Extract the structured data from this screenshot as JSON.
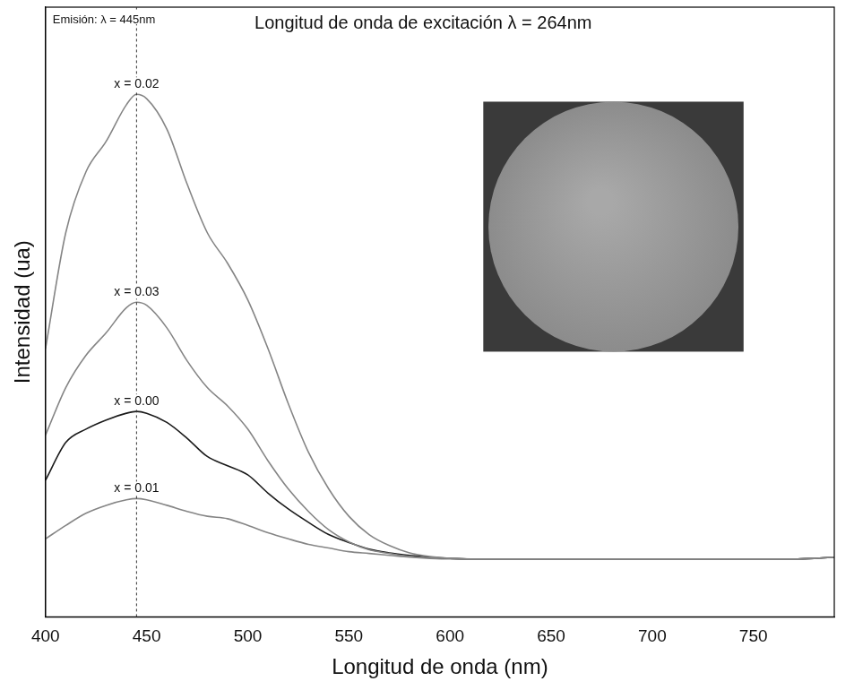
{
  "chart_data": {
    "type": "line",
    "title": "Longitud de onda de excitación λ = 264nm",
    "x_label": "Longitud de onda (nm)",
    "y_label": "Intensidad (ua)",
    "x": [
      400,
      410,
      420,
      430,
      440,
      445,
      450,
      460,
      470,
      480,
      490,
      500,
      510,
      520,
      530,
      540,
      550,
      560,
      570,
      580,
      590,
      600,
      610,
      620,
      630,
      640,
      650,
      660,
      670,
      680,
      690,
      700,
      710,
      720,
      730,
      740,
      750,
      760,
      770,
      780,
      790
    ],
    "series": [
      {
        "name": "x = 0.02",
        "color": "#858585",
        "values": [
          44,
          63,
          73,
          78,
          84,
          85.7,
          85,
          80,
          71,
          63,
          58,
          52,
          44,
          35,
          27,
          21,
          16.5,
          13.5,
          11.7,
          10.5,
          9.9,
          9.6,
          9.5,
          9.5,
          9.5,
          9.5,
          9.5,
          9.5,
          9.5,
          9.5,
          9.5,
          9.5,
          9.5,
          9.5,
          9.5,
          9.5,
          9.5,
          9.5,
          9.5,
          9.6,
          9.8
        ]
      },
      {
        "name": "x = 0.03",
        "color": "#858585",
        "values": [
          29.8,
          37.6,
          42.9,
          46.6,
          50.7,
          51.6,
          51.1,
          47.4,
          42,
          37.6,
          34.6,
          30.8,
          25.6,
          21,
          17.3,
          14.3,
          12.3,
          11,
          10.4,
          9.9,
          9.7,
          9.6,
          9.5,
          9.5,
          9.5,
          9.5,
          9.5,
          9.5,
          9.5,
          9.5,
          9.5,
          9.5,
          9.5,
          9.5,
          9.5,
          9.5,
          9.5,
          9.5,
          9.5,
          9.6,
          9.8
        ]
      },
      {
        "name": "x = 0.00",
        "color": "#1a1a1a",
        "values": [
          22.4,
          28.6,
          30.8,
          32.3,
          33.4,
          33.7,
          33.4,
          31.9,
          29.3,
          26.3,
          24.8,
          23.3,
          20.3,
          17.7,
          15.5,
          13.5,
          12.2,
          11.1,
          10.5,
          10.1,
          9.8,
          9.6,
          9.5,
          9.5,
          9.5,
          9.5,
          9.5,
          9.5,
          9.5,
          9.5,
          9.5,
          9.5,
          9.5,
          9.5,
          9.5,
          9.5,
          9.5,
          9.5,
          9.5,
          9.6,
          9.8
        ]
      },
      {
        "name": "x = 0.01",
        "color": "#858585",
        "values": [
          12.8,
          15,
          17,
          18.3,
          19.2,
          19.4,
          19.2,
          18.3,
          17.3,
          16.5,
          16.1,
          15,
          13.8,
          12.8,
          11.9,
          11.3,
          10.7,
          10.4,
          10.1,
          9.8,
          9.6,
          9.5,
          9.5,
          9.5,
          9.5,
          9.5,
          9.5,
          9.5,
          9.5,
          9.5,
          9.5,
          9.5,
          9.5,
          9.5,
          9.5,
          9.5,
          9.5,
          9.5,
          9.5,
          9.6,
          9.8
        ]
      }
    ],
    "xlim": [
      400,
      790
    ],
    "xticks": [
      400,
      450,
      500,
      550,
      600,
      650,
      700,
      750
    ],
    "ylim": [
      0,
      100
    ],
    "tick_labels": "x",
    "grid": false,
    "annotations": [
      {
        "text": "Emisión: λ = 445nm",
        "x": 445,
        "line_style": "dotted"
      }
    ]
  }
}
